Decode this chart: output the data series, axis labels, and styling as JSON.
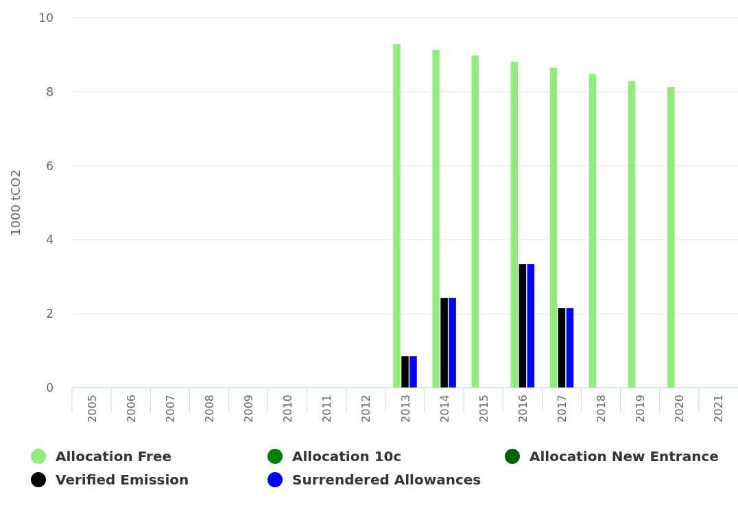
{
  "chart_data": {
    "type": "bar",
    "ylabel": "1000 tCO2",
    "categories": [
      "2005",
      "2006",
      "2007",
      "2008",
      "2009",
      "2010",
      "2011",
      "2012",
      "2013",
      "2014",
      "2015",
      "2016",
      "2017",
      "2018",
      "2019",
      "2020",
      "2021"
    ],
    "series": [
      {
        "name": "Allocation Free",
        "color": "#90ed7d",
        "values": [
          null,
          null,
          null,
          null,
          null,
          null,
          null,
          null,
          9.29,
          9.13,
          8.98,
          8.81,
          8.65,
          8.48,
          8.29,
          8.13,
          null
        ]
      },
      {
        "name": "Allocation 10c",
        "color": "#008000",
        "values": [
          null,
          null,
          null,
          null,
          null,
          null,
          null,
          null,
          null,
          null,
          null,
          null,
          null,
          null,
          null,
          null,
          null
        ]
      },
      {
        "name": "Allocation New Entrance",
        "color": "#006400",
        "values": [
          null,
          null,
          null,
          null,
          null,
          null,
          null,
          null,
          null,
          null,
          null,
          null,
          null,
          null,
          null,
          null,
          null
        ]
      },
      {
        "name": "Verified Emission",
        "color": "#000000",
        "values": [
          null,
          null,
          null,
          null,
          null,
          null,
          null,
          null,
          0.85,
          2.43,
          null,
          3.34,
          2.15,
          null,
          null,
          null,
          null
        ]
      },
      {
        "name": "Surrendered Allowances",
        "color": "#0000ff",
        "values": [
          null,
          null,
          null,
          null,
          null,
          null,
          null,
          null,
          0.85,
          2.43,
          null,
          3.34,
          2.15,
          null,
          null,
          null,
          null
        ]
      }
    ],
    "ylim": [
      0,
      10
    ],
    "yticks": [
      0,
      2,
      4,
      6,
      8,
      10
    ],
    "grid": "y",
    "legend": "bottom"
  }
}
